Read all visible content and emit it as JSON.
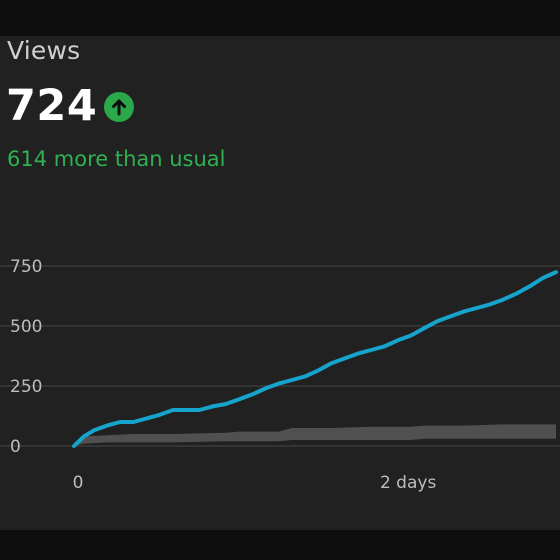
{
  "metric": {
    "title": "Views",
    "value": "724",
    "trend_icon": "arrow-up-icon",
    "comparison": "614 more than usual"
  },
  "colors": {
    "background": "#212121",
    "frame": "#0e0e0e",
    "line": "#16a3cc",
    "band": "#555555",
    "positive": "#2fb152",
    "grid": "#3a3a3a"
  },
  "chart_data": {
    "type": "line",
    "title": "",
    "xlabel": "",
    "ylabel": "",
    "xlim": [
      0,
      2.92
    ],
    "ylim": [
      0,
      750
    ],
    "yticks": [
      0,
      250,
      500,
      750
    ],
    "ytick_labels": [
      "0",
      "250",
      "500",
      "750"
    ],
    "xticks": [
      0,
      2
    ],
    "xtick_labels": [
      "0",
      "2 days"
    ],
    "grid": true,
    "series": [
      {
        "role": "current",
        "x": [
          0,
          0.06,
          0.12,
          0.2,
          0.28,
          0.36,
          0.44,
          0.52,
          0.6,
          0.68,
          0.76,
          0.84,
          0.92,
          1.0,
          1.08,
          1.16,
          1.24,
          1.32,
          1.4,
          1.48,
          1.56,
          1.64,
          1.72,
          1.8,
          1.88,
          1.96,
          2.04,
          2.12,
          2.2,
          2.28,
          2.36,
          2.44,
          2.52,
          2.6,
          2.68,
          2.76,
          2.84,
          2.92
        ],
        "y": [
          0,
          40,
          65,
          85,
          100,
          100,
          115,
          130,
          150,
          150,
          150,
          165,
          175,
          195,
          215,
          240,
          260,
          275,
          290,
          315,
          345,
          365,
          385,
          400,
          415,
          440,
          460,
          490,
          520,
          540,
          560,
          575,
          590,
          610,
          635,
          665,
          700,
          724
        ]
      },
      {
        "role": "usual-range",
        "x": [
          0,
          0.06,
          0.2,
          0.36,
          0.6,
          0.92,
          1.0,
          1.24,
          1.32,
          1.56,
          1.8,
          2.04,
          2.12,
          2.36,
          2.6,
          2.92
        ],
        "upper": [
          0,
          40,
          45,
          50,
          50,
          55,
          60,
          60,
          75,
          75,
          80,
          80,
          85,
          85,
          90,
          90
        ],
        "lower": [
          0,
          10,
          15,
          15,
          15,
          20,
          20,
          20,
          25,
          25,
          25,
          25,
          30,
          30,
          30,
          30
        ]
      }
    ]
  }
}
